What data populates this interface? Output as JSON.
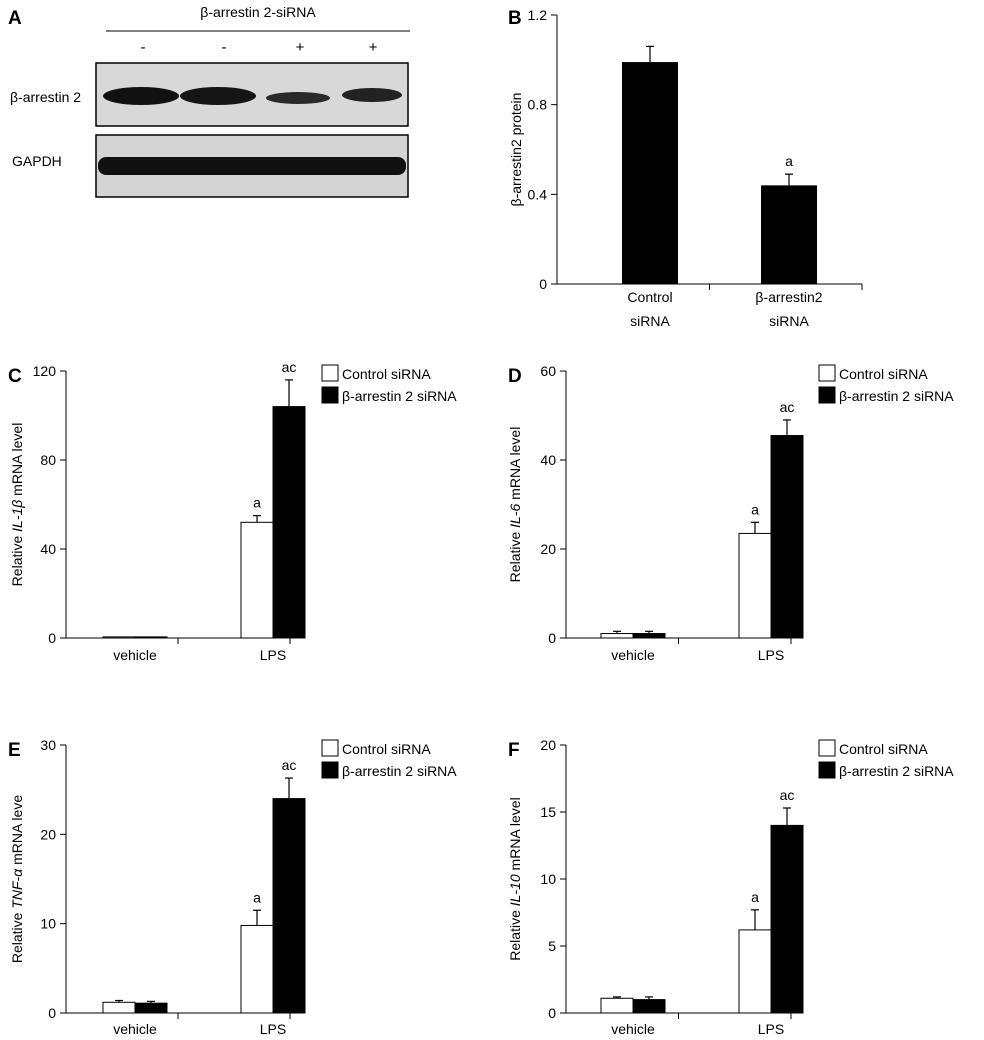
{
  "figure": {
    "panel_labels": [
      "A",
      "B",
      "C",
      "D",
      "E",
      "F"
    ],
    "colors": {
      "bar_black": "#000000",
      "bar_white": "#ffffff",
      "blot_bg": "#d6d6d6",
      "band": "#1a1a1a"
    }
  },
  "blot": {
    "header": "β-arrestin 2-siRNA",
    "lane_signs": [
      "-",
      "-",
      "+",
      "+"
    ],
    "rows": [
      "β-arrestin 2",
      "GAPDH"
    ],
    "band_intensity": {
      "β-arrestin 2": [
        0.95,
        0.95,
        0.7,
        0.75
      ],
      "GAPDH": [
        1,
        1,
        1,
        1
      ]
    }
  },
  "chart_data": [
    {
      "panel": "B",
      "type": "bar",
      "ylabel": "β-arrestin2 protein",
      "categories": [
        "Control siRNA",
        "β-arrestin2 siRNA"
      ],
      "category_lines": [
        [
          "Control",
          "siRNA"
        ],
        [
          "β-arrestin2",
          "siRNA"
        ]
      ],
      "values": [
        0.99,
        0.44
      ],
      "errors": [
        0.07,
        0.05
      ],
      "annotations": [
        "",
        "a"
      ],
      "ylim": [
        0,
        1.2
      ],
      "yticks": [
        "0",
        "0.4",
        "0.8",
        "1.2"
      ]
    },
    {
      "panel": "C",
      "type": "bar",
      "ylabel": {
        "prefix": "Relative ",
        "italic": "IL-1β",
        "suffix": " mRNA level"
      },
      "categories": [
        "vehicle",
        "LPS"
      ],
      "series": [
        {
          "name": "Control siRNA",
          "values": [
            0.5,
            52
          ],
          "errors": [
            0,
            3
          ]
        },
        {
          "name": "β-arrestin 2 siRNA",
          "values": [
            0.5,
            104
          ],
          "errors": [
            0,
            12
          ]
        }
      ],
      "annotations": [
        [
          "",
          "a"
        ],
        [
          "",
          "ac"
        ]
      ],
      "ylim": [
        0,
        120
      ],
      "yticks": [
        "0",
        "40",
        "80",
        "120"
      ],
      "legend": "top-right"
    },
    {
      "panel": "D",
      "type": "bar",
      "ylabel": {
        "prefix": "Relative ",
        "italic": "IL-6",
        "suffix": " mRNA level"
      },
      "categories": [
        "vehicle",
        "LPS"
      ],
      "series": [
        {
          "name": "Control siRNA",
          "values": [
            1,
            23.5
          ],
          "errors": [
            0.5,
            2.5
          ]
        },
        {
          "name": "β-arrestin 2 siRNA",
          "values": [
            1,
            45.5
          ],
          "errors": [
            0.5,
            3.5
          ]
        }
      ],
      "annotations": [
        [
          "",
          "a"
        ],
        [
          "",
          "ac"
        ]
      ],
      "ylim": [
        0,
        60
      ],
      "yticks": [
        "0",
        "20",
        "40",
        "60"
      ],
      "legend": "top-right"
    },
    {
      "panel": "E",
      "type": "bar",
      "ylabel": {
        "prefix": "Relative ",
        "italic": "TNF-α",
        "suffix": " mRNA leve"
      },
      "categories": [
        "vehicle",
        "LPS"
      ],
      "series": [
        {
          "name": "Control siRNA",
          "values": [
            1.2,
            9.8
          ],
          "errors": [
            0.2,
            1.7
          ]
        },
        {
          "name": "β-arrestin 2 siRNA",
          "values": [
            1.1,
            24
          ],
          "errors": [
            0.2,
            2.3
          ]
        }
      ],
      "annotations": [
        [
          "",
          "a"
        ],
        [
          "",
          "ac"
        ]
      ],
      "ylim": [
        0,
        30
      ],
      "yticks": [
        "0",
        "10",
        "20",
        "30"
      ],
      "legend": "top-right"
    },
    {
      "panel": "F",
      "type": "bar",
      "ylabel": {
        "prefix": "Relative ",
        "italic": "IL-10",
        "suffix": " mRNA level"
      },
      "categories": [
        "vehicle",
        "LPS"
      ],
      "series": [
        {
          "name": "Control siRNA",
          "values": [
            1.1,
            6.2
          ],
          "errors": [
            0.1,
            1.5
          ]
        },
        {
          "name": "β-arrestin 2 siRNA",
          "values": [
            1,
            14
          ],
          "errors": [
            0.2,
            1.3
          ]
        }
      ],
      "annotations": [
        [
          "",
          "a"
        ],
        [
          "",
          "ac"
        ]
      ],
      "ylim": [
        0,
        20
      ],
      "yticks": [
        "0",
        "5",
        "10",
        "15",
        "20"
      ],
      "legend": "top-right"
    }
  ]
}
